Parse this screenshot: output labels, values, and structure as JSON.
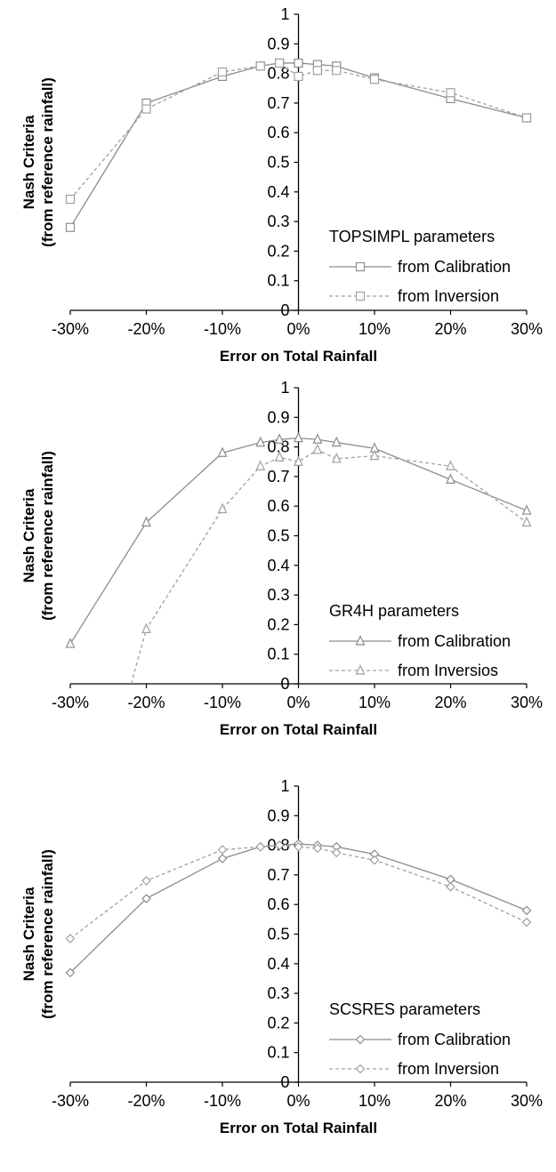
{
  "chart_data": [
    {
      "type": "line",
      "xlabel": "Error on Total Rainfall",
      "ylabel": [
        "Nash Criteria",
        "(from reference rainfall)"
      ],
      "xlim": [
        -0.3,
        0.3
      ],
      "ylim": [
        0,
        1
      ],
      "x_tick_labels": [
        "-30%",
        "-20%",
        "-10%",
        "0%",
        "10%",
        "20%",
        "30%"
      ],
      "y_tick_labels": [
        "0",
        "0.1",
        "0.2",
        "0.3",
        "0.4",
        "0.5",
        "0.6",
        "0.7",
        "0.8",
        "0.9",
        "1"
      ],
      "grid": false,
      "legend_title": "TOPSIMPL parameters",
      "legend_position": "bottom-right",
      "marker": "square",
      "series": [
        {
          "name": "from Calibration",
          "style": "solid",
          "color": "#8c8c8c",
          "x": [
            -0.3,
            -0.2,
            -0.1,
            -0.05,
            -0.025,
            0.0,
            0.025,
            0.05,
            0.1,
            0.2,
            0.3
          ],
          "values": [
            0.28,
            0.7,
            0.79,
            0.825,
            0.835,
            0.835,
            0.83,
            0.825,
            0.785,
            0.715,
            0.65
          ]
        },
        {
          "name": "from Inversion",
          "style": "dashed",
          "color": "#a0a0a0",
          "x": [
            -0.3,
            -0.2,
            -0.1,
            -0.05,
            -0.025,
            0.0,
            0.025,
            0.05,
            0.1,
            0.2,
            0.3
          ],
          "values": [
            0.375,
            0.68,
            0.805,
            0.825,
            0.835,
            0.79,
            0.81,
            0.81,
            0.78,
            0.735,
            0.65
          ]
        }
      ]
    },
    {
      "type": "line",
      "xlabel": "Error on Total Rainfall",
      "ylabel": [
        "Nash Criteria",
        "(from reference rainfall)"
      ],
      "xlim": [
        -0.3,
        0.3
      ],
      "ylim": [
        0,
        1
      ],
      "x_tick_labels": [
        "-30%",
        "-20%",
        "-10%",
        "0%",
        "10%",
        "20%",
        "30%"
      ],
      "y_tick_labels": [
        "0",
        "0.1",
        "0.2",
        "0.3",
        "0.4",
        "0.5",
        "0.6",
        "0.7",
        "0.8",
        "0.9",
        "1"
      ],
      "grid": false,
      "legend_title": "GR4H parameters",
      "legend_position": "bottom-right",
      "marker": "triangle",
      "series": [
        {
          "name": "from Calibration",
          "style": "solid",
          "color": "#8c8c8c",
          "x": [
            -0.3,
            -0.2,
            -0.1,
            -0.05,
            -0.025,
            0.0,
            0.025,
            0.05,
            0.1,
            0.2,
            0.3
          ],
          "values": [
            0.135,
            0.545,
            0.78,
            0.815,
            0.825,
            0.83,
            0.825,
            0.815,
            0.795,
            0.69,
            0.585
          ]
        },
        {
          "name": "from Inversios",
          "style": "dashed",
          "color": "#a0a0a0",
          "x": [
            -0.22,
            -0.2,
            -0.1,
            -0.05,
            -0.025,
            0.0,
            0.025,
            0.05,
            0.1,
            0.2,
            0.3
          ],
          "values": [
            0.0,
            0.185,
            0.59,
            0.735,
            0.765,
            0.75,
            0.79,
            0.76,
            0.77,
            0.735,
            0.545
          ]
        }
      ]
    },
    {
      "type": "line",
      "xlabel": "Error on Total Rainfall",
      "ylabel": [
        "Nash Criteria",
        "(from reference rainfall)"
      ],
      "xlim": [
        -0.3,
        0.3
      ],
      "ylim": [
        0,
        1
      ],
      "x_tick_labels": [
        "-30%",
        "-20%",
        "-10%",
        "0%",
        "10%",
        "20%",
        "30%"
      ],
      "y_tick_labels": [
        "0",
        "0.1",
        "0.2",
        "0.3",
        "0.4",
        "0.5",
        "0.6",
        "0.7",
        "0.8",
        "0.9",
        "1"
      ],
      "grid": false,
      "legend_title": "SCSRES parameters",
      "legend_position": "bottom-right",
      "marker": "diamond",
      "series": [
        {
          "name": "from Calibration",
          "style": "solid",
          "color": "#8c8c8c",
          "x": [
            -0.3,
            -0.2,
            -0.1,
            -0.05,
            -0.025,
            0.0,
            0.025,
            0.05,
            0.1,
            0.2,
            0.3
          ],
          "values": [
            0.37,
            0.62,
            0.755,
            0.795,
            0.8,
            0.805,
            0.8,
            0.795,
            0.77,
            0.685,
            0.58
          ]
        },
        {
          "name": "from Inversion",
          "style": "dashed",
          "color": "#a0a0a0",
          "x": [
            -0.3,
            -0.2,
            -0.1,
            -0.05,
            -0.025,
            0.0,
            0.025,
            0.05,
            0.1,
            0.2,
            0.3
          ],
          "values": [
            0.485,
            0.68,
            0.785,
            0.795,
            0.8,
            0.795,
            0.79,
            0.775,
            0.75,
            0.66,
            0.54
          ]
        }
      ]
    }
  ]
}
